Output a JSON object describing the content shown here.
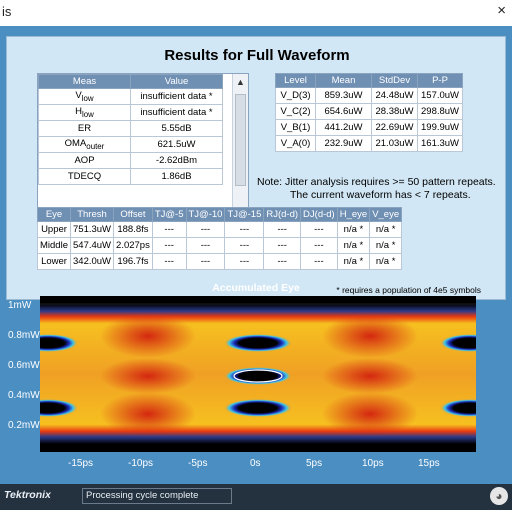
{
  "window": {
    "title_fragment": "is",
    "close_glyph": "×"
  },
  "panel": {
    "title": "Results for Full Waveform"
  },
  "meas_table": {
    "headers": [
      "Meas",
      "Value"
    ],
    "rows": [
      {
        "name_html": "V<sub>low</sub>",
        "value": "insufficient data *"
      },
      {
        "name_html": "H<sub>low</sub>",
        "value": "insufficient data *"
      },
      {
        "name_html": "ER",
        "value": "5.55dB"
      },
      {
        "name_html": "OMA<sub>outer</sub>",
        "value": "621.5uW"
      },
      {
        "name_html": "AOP",
        "value": "-2.62dBm"
      },
      {
        "name_html": "TDECQ",
        "value": "1.86dB"
      }
    ]
  },
  "level_table": {
    "headers": [
      "Level",
      "Mean",
      "StdDev",
      "P-P"
    ],
    "rows": [
      [
        "V_D(3)",
        "859.3uW",
        "24.48uW",
        "157.0uW"
      ],
      [
        "V_C(2)",
        "654.6uW",
        "28.38uW",
        "298.8uW"
      ],
      [
        "V_B(1)",
        "441.2uW",
        "22.69uW",
        "199.9uW"
      ],
      [
        "V_A(0)",
        "232.9uW",
        "21.03uW",
        "161.3uW"
      ]
    ]
  },
  "note": {
    "line1": "Note: Jitter analysis requires >= 50 pattern repeats.",
    "line2": "The current waveform has < 7 repeats."
  },
  "eye_table": {
    "headers": [
      "Eye",
      "Thresh",
      "Offset",
      "TJ@-5",
      "TJ@-10",
      "TJ@-15",
      "RJ(d-d)",
      "DJ(d-d)",
      "H_eye",
      "V_eye"
    ],
    "rows": [
      [
        "Upper",
        "751.3uW",
        "188.8fs",
        "---",
        "---",
        "---",
        "---",
        "---",
        "n/a *",
        "n/a *"
      ],
      [
        "Middle",
        "547.4uW",
        "2.027ps",
        "---",
        "---",
        "---",
        "---",
        "---",
        "n/a *",
        "n/a *"
      ],
      [
        "Lower",
        "342.0uW",
        "196.7fs",
        "---",
        "---",
        "---",
        "---",
        "---",
        "n/a *",
        "n/a *"
      ]
    ]
  },
  "footnote": "* requires a population of 4e5 symbols",
  "plot": {
    "title": "Accumulated Eye",
    "y_ticks": [
      "1mW",
      "0.8mW",
      "0.6mW",
      "0.4mW",
      "0.2mW"
    ],
    "x_ticks": [
      "-15ps",
      "-10ps",
      "-5ps",
      "0s",
      "5ps",
      "10ps",
      "15ps"
    ]
  },
  "status": {
    "logo": "Tektronix",
    "message": "Processing cycle complete"
  }
}
